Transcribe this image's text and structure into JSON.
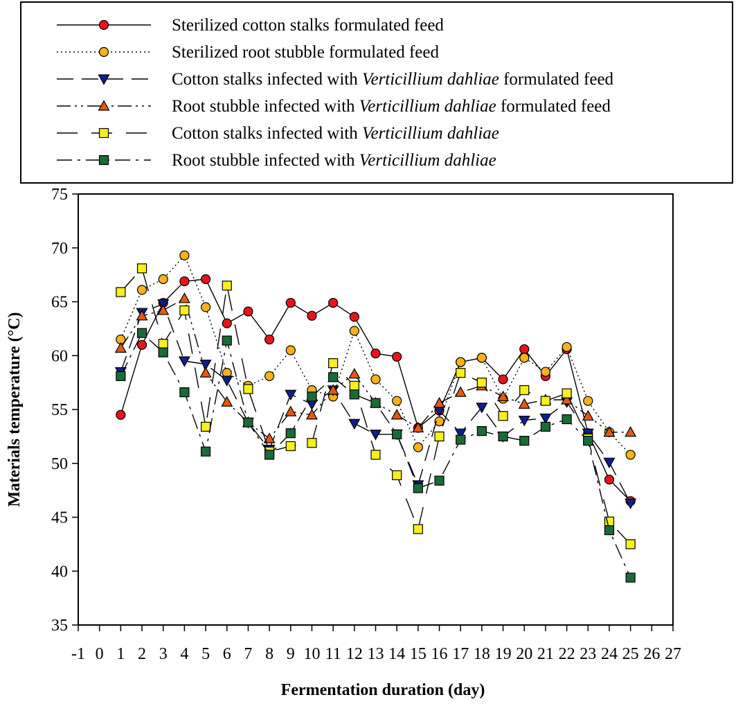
{
  "chart_data": {
    "type": "line",
    "title": "",
    "xlabel": "Fermentation duration (day)",
    "ylabel": "Materials temperature (°C)",
    "xlim": [
      -1,
      27
    ],
    "ylim": [
      35,
      75
    ],
    "x_ticks": [
      -1,
      0,
      1,
      2,
      3,
      4,
      5,
      6,
      7,
      8,
      9,
      10,
      11,
      12,
      13,
      14,
      15,
      16,
      17,
      18,
      19,
      20,
      21,
      22,
      23,
      24,
      25,
      26,
      27
    ],
    "y_ticks": [
      35,
      40,
      45,
      50,
      55,
      60,
      65,
      70,
      75
    ],
    "x": [
      1,
      2,
      3,
      4,
      5,
      6,
      7,
      8,
      9,
      10,
      11,
      12,
      13,
      14,
      15,
      16,
      17,
      18,
      19,
      20,
      21,
      22,
      23,
      24,
      25
    ],
    "legend_position": "top",
    "series": [
      {
        "name": "Sterilized cotton stalks formulated feed",
        "legend_parts": [
          "Sterilized cotton stalks formulated feed"
        ],
        "marker": "circle",
        "color": "#e8141c",
        "dash": "solid",
        "values": [
          54.5,
          61.0,
          64.9,
          66.9,
          67.1,
          63.0,
          64.1,
          61.5,
          64.9,
          63.7,
          64.9,
          63.6,
          60.2,
          59.9,
          53.3,
          54.9,
          59.4,
          59.8,
          57.8,
          60.6,
          58.1,
          60.6,
          52.8,
          48.5,
          46.5
        ]
      },
      {
        "name": "Sterilized root stubble formulated feed",
        "legend_parts": [
          "Sterilized root stubble formulated feed"
        ],
        "marker": "circle",
        "color": "#f7b21b",
        "dash": "dotted",
        "values": [
          61.5,
          66.1,
          67.1,
          69.3,
          64.5,
          58.4,
          57.2,
          58.1,
          60.5,
          56.8,
          56.2,
          62.3,
          57.8,
          55.8,
          51.5,
          53.9,
          59.4,
          59.8,
          56.0,
          59.8,
          58.5,
          60.8,
          55.8,
          52.9,
          50.8
        ]
      },
      {
        "name": "Cotton stalks infected with Verticillium dahliae formulated feed",
        "legend_parts": [
          "Cotton stalks infected with ",
          "Verticillium dahliae",
          " formulated feed"
        ],
        "marker": "triangle-down",
        "color": "#0e1f8c",
        "dash": "dash",
        "values": [
          58.5,
          64.0,
          64.8,
          59.5,
          59.2,
          57.7,
          53.8,
          51.3,
          56.4,
          55.5,
          56.8,
          53.7,
          52.7,
          52.7,
          48.0,
          54.9,
          52.8,
          55.2,
          52.5,
          54.0,
          54.2,
          55.7,
          52.8,
          50.1,
          46.3
        ]
      },
      {
        "name": "Root stubble infected with Verticillium dahliae formulated feed",
        "legend_parts": [
          "Root stubble infected with ",
          "Verticillium dahliae",
          " formulated feed"
        ],
        "marker": "triangle-up",
        "color": "#e35a14",
        "dash": "dashdotdot",
        "values": [
          60.7,
          63.7,
          64.2,
          65.3,
          58.4,
          55.7,
          53.8,
          52.3,
          54.8,
          54.5,
          56.8,
          58.3,
          55.6,
          54.5,
          53.3,
          55.6,
          56.6,
          57.2,
          56.2,
          55.5,
          55.9,
          55.9,
          54.4,
          52.9,
          52.9
        ]
      },
      {
        "name": "Cotton stalks infected with Verticillium dahliae",
        "legend_parts": [
          "Cotton stalks infected with ",
          "Verticillium dahliae",
          ""
        ],
        "marker": "square",
        "color": "#f7ef1e",
        "dash": "longdash",
        "values": [
          65.9,
          68.1,
          61.1,
          64.2,
          53.4,
          66.5,
          56.9,
          51.1,
          51.6,
          51.9,
          59.3,
          57.2,
          50.8,
          48.9,
          43.9,
          52.5,
          58.4,
          57.5,
          54.4,
          56.8,
          55.8,
          56.5,
          52.3,
          44.6,
          42.5
        ]
      },
      {
        "name": "Root stubble infected with Verticillium dahliae",
        "legend_parts": [
          "Root stubble infected with ",
          "Verticillium dahliae",
          ""
        ],
        "marker": "square",
        "color": "#1a6b38",
        "dash": "dashdot",
        "values": [
          58.1,
          62.1,
          60.3,
          56.6,
          51.1,
          61.4,
          53.8,
          50.8,
          52.8,
          56.2,
          58.0,
          56.4,
          55.6,
          52.7,
          47.7,
          48.4,
          52.2,
          53.0,
          52.5,
          52.1,
          53.4,
          54.1,
          52.1,
          43.8,
          39.4
        ]
      }
    ]
  }
}
